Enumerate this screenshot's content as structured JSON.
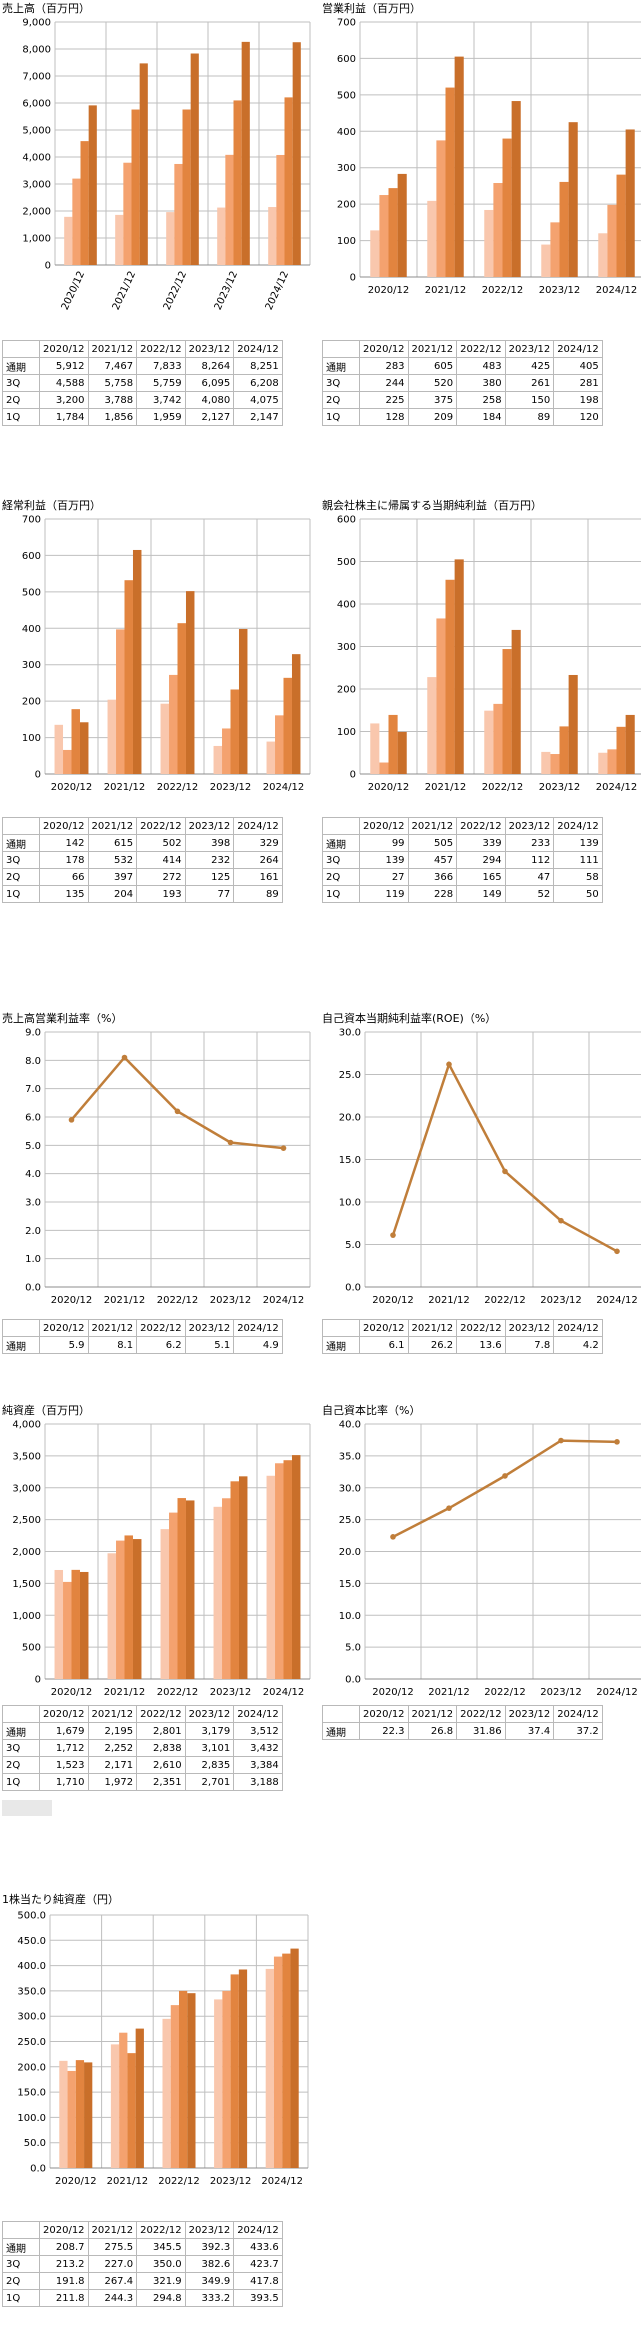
{
  "colors": {
    "q1": "#f9c7ad",
    "q2": "#f4a26f",
    "q3": "#e2843f",
    "annual": "#c96f2a",
    "line": "#c07e3a",
    "grid": "#bfbfbf"
  },
  "chart_data": [
    {
      "id": "sales",
      "type": "bar",
      "title": "売上高（百万円）",
      "categories": [
        "2020/12",
        "2021/12",
        "2022/12",
        "2023/12",
        "2024/12"
      ],
      "ylim": [
        0,
        9000
      ],
      "ticks": [
        "0",
        "1,000",
        "2,000",
        "3,000",
        "4,000",
        "5,000",
        "6,000",
        "7,000",
        "8,000",
        "9,000"
      ],
      "tick_values": [
        0,
        1000,
        2000,
        3000,
        4000,
        5000,
        6000,
        7000,
        8000,
        9000
      ],
      "xlabel_rotate": true,
      "series": [
        {
          "name": "1Q",
          "values": [
            1784,
            1856,
            1959,
            2127,
            2147
          ]
        },
        {
          "name": "2Q",
          "values": [
            3200,
            3788,
            3742,
            4080,
            4075
          ]
        },
        {
          "name": "3Q",
          "values": [
            4588,
            5758,
            5759,
            6095,
            6208
          ]
        },
        {
          "name": "通期",
          "values": [
            5912,
            7467,
            7833,
            8264,
            8251
          ]
        }
      ],
      "table": [
        [
          "通期",
          "5,912",
          "7,467",
          "7,833",
          "8,264",
          "8,251"
        ],
        [
          "3Q",
          "4,588",
          "5,758",
          "5,759",
          "6,095",
          "6,208"
        ],
        [
          "2Q",
          "3,200",
          "3,788",
          "3,742",
          "4,080",
          "4,075"
        ],
        [
          "1Q",
          "1,784",
          "1,856",
          "1,959",
          "2,127",
          "2,147"
        ]
      ]
    },
    {
      "id": "op",
      "type": "bar",
      "title": "営業利益（百万円）",
      "categories": [
        "2020/12",
        "2021/12",
        "2022/12",
        "2023/12",
        "2024/12"
      ],
      "ylim": [
        0,
        700
      ],
      "ticks": [
        "0",
        "100",
        "200",
        "300",
        "400",
        "500",
        "600",
        "700"
      ],
      "tick_values": [
        0,
        100,
        200,
        300,
        400,
        500,
        600,
        700
      ],
      "series": [
        {
          "name": "1Q",
          "values": [
            128,
            209,
            184,
            89,
            120
          ]
        },
        {
          "name": "2Q",
          "values": [
            225,
            375,
            258,
            150,
            198
          ]
        },
        {
          "name": "3Q",
          "values": [
            244,
            520,
            380,
            261,
            281
          ]
        },
        {
          "name": "通期",
          "values": [
            283,
            605,
            483,
            425,
            405
          ]
        }
      ],
      "table": [
        [
          "通期",
          "283",
          "605",
          "483",
          "425",
          "405"
        ],
        [
          "3Q",
          "244",
          "520",
          "380",
          "261",
          "281"
        ],
        [
          "2Q",
          "225",
          "375",
          "258",
          "150",
          "198"
        ],
        [
          "1Q",
          "128",
          "209",
          "184",
          "89",
          "120"
        ]
      ]
    },
    {
      "id": "ordinary",
      "type": "bar",
      "title": "経常利益（百万円）",
      "categories": [
        "2020/12",
        "2021/12",
        "2022/12",
        "2023/12",
        "2024/12"
      ],
      "ylim": [
        0,
        700
      ],
      "ticks": [
        "0",
        "100",
        "200",
        "300",
        "400",
        "500",
        "600",
        "700"
      ],
      "tick_values": [
        0,
        100,
        200,
        300,
        400,
        500,
        600,
        700
      ],
      "series": [
        {
          "name": "1Q",
          "values": [
            135,
            204,
            193,
            77,
            89
          ]
        },
        {
          "name": "2Q",
          "values": [
            66,
            397,
            272,
            125,
            161
          ]
        },
        {
          "name": "3Q",
          "values": [
            178,
            532,
            414,
            232,
            264
          ]
        },
        {
          "name": "通期",
          "values": [
            142,
            615,
            502,
            398,
            329
          ]
        }
      ],
      "table": [
        [
          "通期",
          "142",
          "615",
          "502",
          "398",
          "329"
        ],
        [
          "3Q",
          "178",
          "532",
          "414",
          "232",
          "264"
        ],
        [
          "2Q",
          "66",
          "397",
          "272",
          "125",
          "161"
        ],
        [
          "1Q",
          "135",
          "204",
          "193",
          "77",
          "89"
        ]
      ]
    },
    {
      "id": "net",
      "type": "bar",
      "title": "親会社株主に帰属する当期純利益（百万円）",
      "categories": [
        "2020/12",
        "2021/12",
        "2022/12",
        "2023/12",
        "2024/12"
      ],
      "ylim": [
        0,
        600
      ],
      "ticks": [
        "0",
        "100",
        "200",
        "300",
        "400",
        "500",
        "600"
      ],
      "tick_values": [
        0,
        100,
        200,
        300,
        400,
        500,
        600
      ],
      "series": [
        {
          "name": "1Q",
          "values": [
            119,
            228,
            149,
            52,
            50
          ]
        },
        {
          "name": "2Q",
          "values": [
            27,
            366,
            165,
            47,
            58
          ]
        },
        {
          "name": "3Q",
          "values": [
            139,
            457,
            294,
            112,
            111
          ]
        },
        {
          "name": "通期",
          "values": [
            99,
            505,
            339,
            233,
            139
          ]
        }
      ],
      "table": [
        [
          "通期",
          "99",
          "505",
          "339",
          "233",
          "139"
        ],
        [
          "3Q",
          "139",
          "457",
          "294",
          "112",
          "111"
        ],
        [
          "2Q",
          "27",
          "366",
          "165",
          "47",
          "58"
        ],
        [
          "1Q",
          "119",
          "228",
          "149",
          "52",
          "50"
        ]
      ]
    },
    {
      "id": "margin",
      "type": "line",
      "title": "売上高営業利益率（%）",
      "categories": [
        "2020/12",
        "2021/12",
        "2022/12",
        "2023/12",
        "2024/12"
      ],
      "ylim": [
        0,
        9
      ],
      "ticks": [
        "0.0",
        "1.0",
        "2.0",
        "3.0",
        "4.0",
        "5.0",
        "6.0",
        "7.0",
        "8.0",
        "9.0"
      ],
      "tick_values": [
        0,
        1,
        2,
        3,
        4,
        5,
        6,
        7,
        8,
        9
      ],
      "series": [
        {
          "name": "通期",
          "values": [
            5.9,
            8.1,
            6.2,
            5.1,
            4.9
          ]
        }
      ],
      "table": [
        [
          "通期",
          "5.9",
          "8.1",
          "6.2",
          "5.1",
          "4.9"
        ]
      ]
    },
    {
      "id": "roe",
      "type": "line",
      "title": "自己資本当期純利益率(ROE)（%）",
      "categories": [
        "2020/12",
        "2021/12",
        "2022/12",
        "2023/12",
        "2024/12"
      ],
      "ylim": [
        0,
        30
      ],
      "ticks": [
        "0.0",
        "5.0",
        "10.0",
        "15.0",
        "20.0",
        "25.0",
        "30.0"
      ],
      "tick_values": [
        0,
        5,
        10,
        15,
        20,
        25,
        30
      ],
      "series": [
        {
          "name": "通期",
          "values": [
            6.1,
            26.2,
            13.6,
            7.8,
            4.2
          ]
        }
      ],
      "table": [
        [
          "通期",
          "6.1",
          "26.2",
          "13.6",
          "7.8",
          "4.2"
        ]
      ]
    },
    {
      "id": "equity",
      "type": "bar",
      "title": "純資産（百万円）",
      "categories": [
        "2020/12",
        "2021/12",
        "2022/12",
        "2023/12",
        "2024/12"
      ],
      "ylim": [
        0,
        4000
      ],
      "ticks": [
        "0",
        "500",
        "1,000",
        "1,500",
        "2,000",
        "2,500",
        "3,000",
        "3,500",
        "4,000"
      ],
      "tick_values": [
        0,
        500,
        1000,
        1500,
        2000,
        2500,
        3000,
        3500,
        4000
      ],
      "series": [
        {
          "name": "1Q",
          "values": [
            1710,
            1972,
            2351,
            2701,
            3188
          ]
        },
        {
          "name": "2Q",
          "values": [
            1523,
            2171,
            2610,
            2835,
            3384
          ]
        },
        {
          "name": "3Q",
          "values": [
            1712,
            2252,
            2838,
            3101,
            3432
          ]
        },
        {
          "name": "通期",
          "values": [
            1679,
            2195,
            2801,
            3179,
            3512
          ]
        }
      ],
      "table": [
        [
          "通期",
          "1,679",
          "2,195",
          "2,801",
          "3,179",
          "3,512"
        ],
        [
          "3Q",
          "1,712",
          "2,252",
          "2,838",
          "3,101",
          "3,432"
        ],
        [
          "2Q",
          "1,523",
          "2,171",
          "2,610",
          "2,835",
          "3,384"
        ],
        [
          "1Q",
          "1,710",
          "1,972",
          "2,351",
          "2,701",
          "3,188"
        ]
      ]
    },
    {
      "id": "ratio",
      "type": "line",
      "title": "自己資本比率（%）",
      "categories": [
        "2020/12",
        "2021/12",
        "2022/12",
        "2023/12",
        "2024/12"
      ],
      "ylim": [
        0,
        40
      ],
      "ticks": [
        "0.0",
        "5.0",
        "10.0",
        "15.0",
        "20.0",
        "25.0",
        "30.0",
        "35.0",
        "40.0"
      ],
      "tick_values": [
        0,
        5,
        10,
        15,
        20,
        25,
        30,
        35,
        40
      ],
      "series": [
        {
          "name": "通期",
          "values": [
            22.3,
            26.8,
            31.86,
            37.4,
            37.2
          ]
        }
      ],
      "table": [
        [
          "通期",
          "22.3",
          "26.8",
          "31.86",
          "37.4",
          "37.2"
        ]
      ]
    },
    {
      "id": "bps",
      "type": "bar",
      "title": "1株当たり純資産（円）",
      "categories": [
        "2020/12",
        "2021/12",
        "2022/12",
        "2023/12",
        "2024/12"
      ],
      "ylim": [
        0,
        500
      ],
      "ticks": [
        "0.0",
        "50.0",
        "100.0",
        "150.0",
        "200.0",
        "250.0",
        "300.0",
        "350.0",
        "400.0",
        "450.0",
        "500.0"
      ],
      "tick_values": [
        0,
        50,
        100,
        150,
        200,
        250,
        300,
        350,
        400,
        450,
        500
      ],
      "series": [
        {
          "name": "1Q",
          "values": [
            211.8,
            244.3,
            294.8,
            333.2,
            393.5
          ]
        },
        {
          "name": "2Q",
          "values": [
            191.8,
            267.4,
            321.9,
            349.9,
            417.8
          ]
        },
        {
          "name": "3Q",
          "values": [
            213.2,
            227.0,
            350.0,
            382.6,
            423.7
          ]
        },
        {
          "name": "通期",
          "values": [
            208.7,
            275.5,
            345.5,
            392.3,
            433.6
          ]
        }
      ],
      "table": [
        [
          "通期",
          "208.7",
          "275.5",
          "345.5",
          "392.3",
          "433.6"
        ],
        [
          "3Q",
          "213.2",
          "227.0",
          "350.0",
          "382.6",
          "423.7"
        ],
        [
          "2Q",
          "191.8",
          "267.4",
          "321.9",
          "349.9",
          "417.8"
        ],
        [
          "1Q",
          "211.8",
          "244.3",
          "294.8",
          "333.2",
          "393.5"
        ]
      ]
    }
  ]
}
